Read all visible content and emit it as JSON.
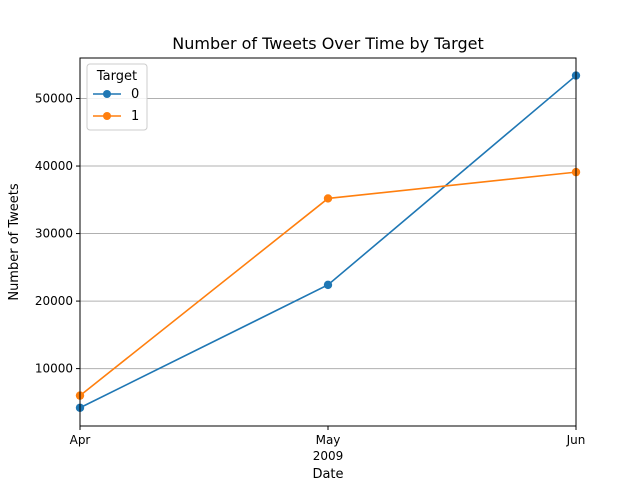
{
  "chart_data": {
    "type": "line",
    "title": "Number of Tweets Over Time by Target",
    "xlabel": "Date",
    "ylabel": "Number of Tweets",
    "x": [
      "2009-04",
      "2009-05",
      "2009-06"
    ],
    "x_tick_labels": [
      "Apr",
      "May",
      "Jun"
    ],
    "x_secondary_label": "2009",
    "y_ticks": [
      10000,
      20000,
      30000,
      40000,
      50000
    ],
    "ylim": [
      1500,
      56000
    ],
    "grid": "y",
    "legend": {
      "title": "Target",
      "placement": "top-left"
    },
    "series": [
      {
        "name": "0",
        "color": "#1f77b4",
        "values": [
          4200,
          22400,
          53400
        ]
      },
      {
        "name": "1",
        "color": "#ff7f0e",
        "values": [
          6000,
          35200,
          39100
        ]
      }
    ]
  }
}
